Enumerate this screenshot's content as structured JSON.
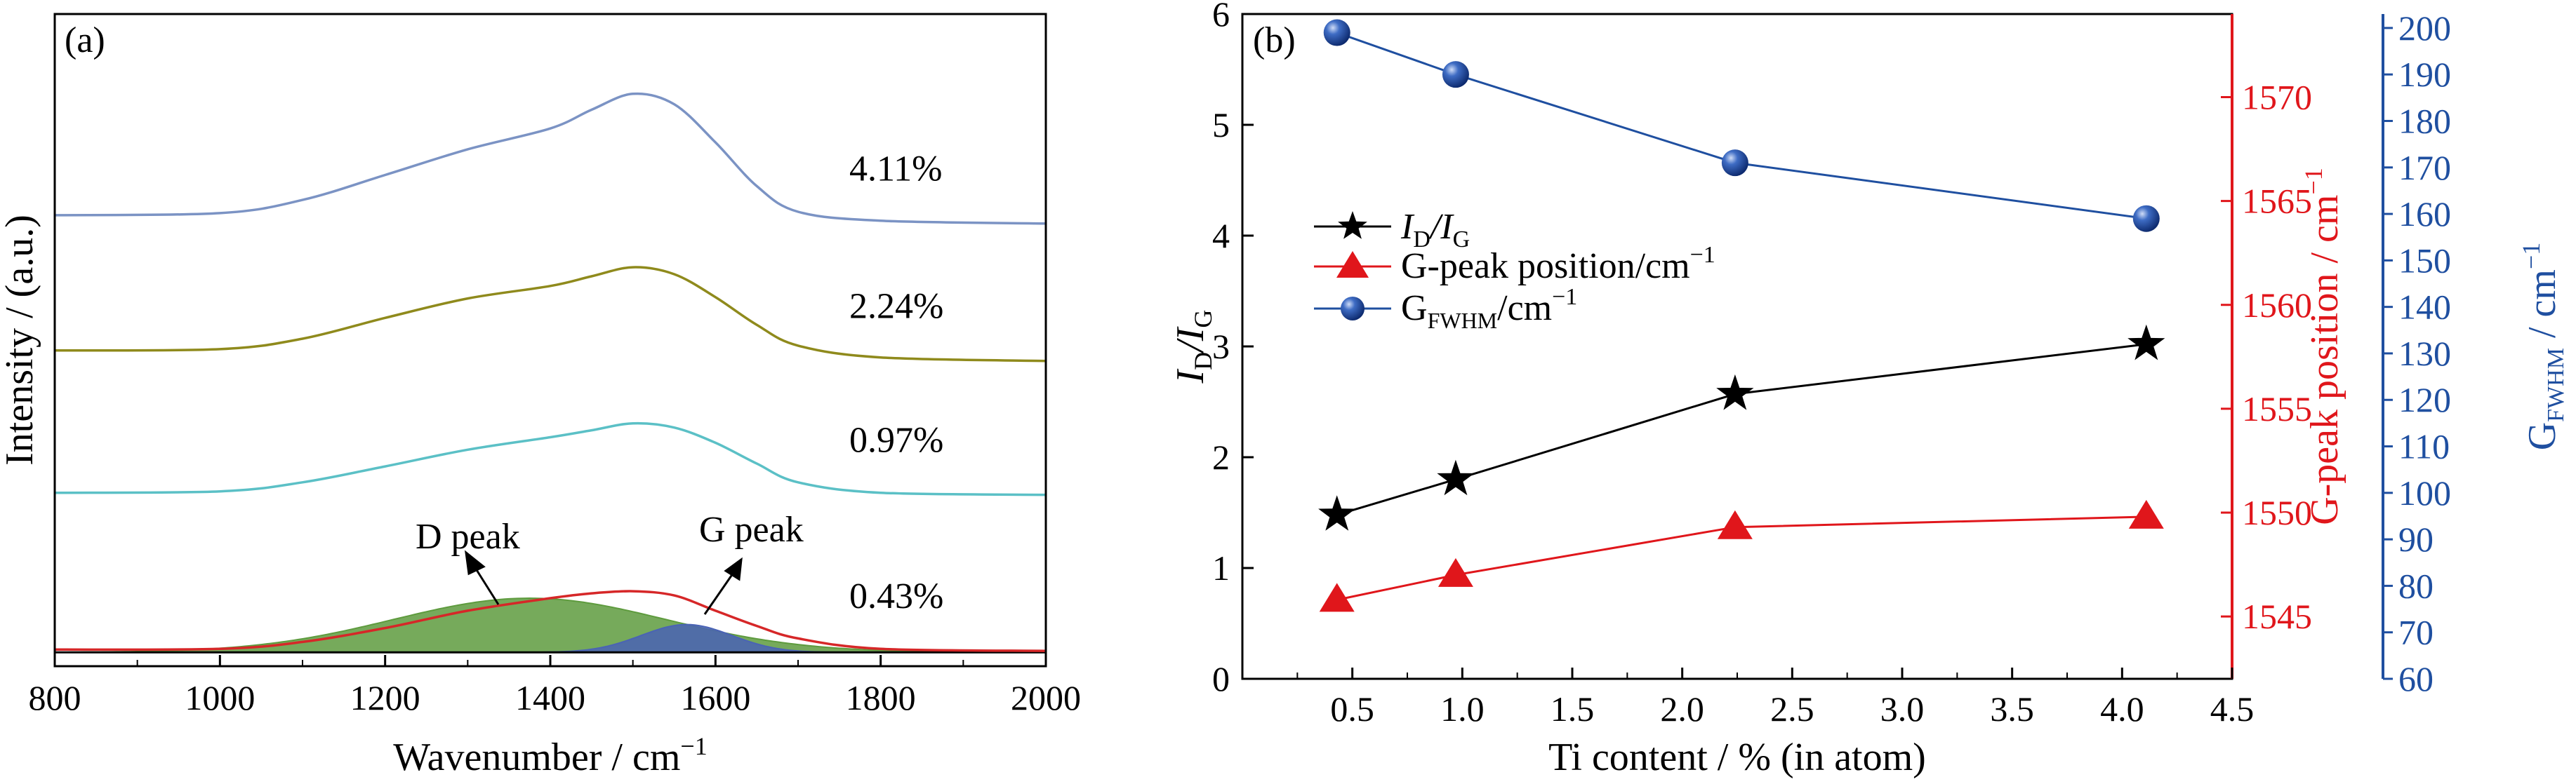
{
  "chart_data": [
    {
      "panel": "(a)",
      "type": "line",
      "xlabel": "Wavenumber / cm",
      "xlabel_sup": "−1",
      "ylabel": "Intensity / (a.u.)",
      "xlim": [
        800,
        2000
      ],
      "xticks": [
        "800",
        "1000",
        "1200",
        "1400",
        "1600",
        "1800",
        "2000"
      ],
      "series": [
        {
          "name": "0.43%",
          "color": "#d62728",
          "x": [
            800,
            1000,
            1100,
            1200,
            1300,
            1400,
            1450,
            1500,
            1550,
            1600,
            1650,
            1700,
            1800,
            2000
          ],
          "y": [
            0.04,
            0.05,
            0.15,
            0.35,
            0.6,
            0.78,
            0.85,
            0.88,
            0.82,
            0.6,
            0.38,
            0.2,
            0.05,
            0.02
          ]
        },
        {
          "name": "0.97%",
          "color": "#5bc0c6",
          "x": [
            800,
            1000,
            1100,
            1200,
            1300,
            1400,
            1450,
            1500,
            1550,
            1600,
            1650,
            1700,
            1800,
            2000
          ],
          "y": [
            2.3,
            2.32,
            2.45,
            2.68,
            2.92,
            3.1,
            3.2,
            3.3,
            3.24,
            3.02,
            2.72,
            2.45,
            2.3,
            2.27
          ]
        },
        {
          "name": "2.24%",
          "color": "#8f8a1c",
          "x": [
            800,
            1000,
            1100,
            1200,
            1300,
            1400,
            1450,
            1500,
            1550,
            1600,
            1650,
            1700,
            1800,
            2000
          ],
          "y": [
            4.35,
            4.37,
            4.52,
            4.82,
            5.1,
            5.28,
            5.42,
            5.55,
            5.45,
            5.12,
            4.72,
            4.42,
            4.25,
            4.2
          ]
        },
        {
          "name": "4.11%",
          "color": "#7b93c4",
          "x": [
            800,
            1000,
            1100,
            1200,
            1300,
            1400,
            1450,
            1500,
            1550,
            1600,
            1650,
            1700,
            1800,
            2000
          ],
          "y": [
            6.3,
            6.33,
            6.52,
            6.88,
            7.25,
            7.55,
            7.82,
            8.05,
            7.9,
            7.35,
            6.72,
            6.35,
            6.22,
            6.18
          ]
        }
      ],
      "fits": [
        {
          "name": "D peak",
          "color": "#5e9b3e",
          "center": 1375,
          "sigma": 165,
          "amplitude": 0.78
        },
        {
          "name": "G peak",
          "color": "#4a63b5",
          "center": 1565,
          "sigma": 55,
          "amplitude": 0.4
        }
      ],
      "annotations": [
        "D peak",
        "G peak"
      ],
      "ylim": [
        -0.2,
        9.2
      ]
    },
    {
      "panel": "(b)",
      "type": "line",
      "xlabel": "Ti content / % (in atom)",
      "xlim": [
        0,
        4.5
      ],
      "xticks": [
        "0.5",
        "1.0",
        "1.5",
        "2.0",
        "2.5",
        "3.0",
        "3.5",
        "4.0",
        "4.5"
      ],
      "x": [
        0.43,
        0.97,
        2.24,
        4.11
      ],
      "ylabel_left": "I_D/I_G",
      "ylim_left": [
        0,
        6
      ],
      "yticks_left": [
        "0",
        "1",
        "2",
        "3",
        "4",
        "5",
        "6"
      ],
      "ylabel_right1": "G-peak position / cm",
      "ylabel_right1_sup": "−1",
      "ylim_right1": [
        1542,
        1574
      ],
      "yticks_right1": [
        "1545",
        "1550",
        "1555",
        "1560",
        "1565",
        "1570"
      ],
      "ylabel_right2": "G",
      "ylabel_right2_sub": "FWHM",
      "ylabel_right2_unit": " / cm",
      "ylabel_right2_sup": "−1",
      "ylim_right2": [
        60,
        203
      ],
      "yticks_right2": [
        "60",
        "70",
        "80",
        "90",
        "100",
        "110",
        "120",
        "130",
        "140",
        "150",
        "160",
        "170",
        "180",
        "190",
        "200"
      ],
      "series": [
        {
          "name": "I_D/I_G",
          "color": "#000000",
          "marker": "star",
          "axis": "left",
          "values": [
            1.48,
            1.8,
            2.57,
            3.02
          ]
        },
        {
          "name": "G-peak position/cm",
          "name_sup": "−1",
          "color": "#e0161b",
          "marker": "triangle",
          "axis": "right1",
          "values": [
            1545.8,
            1547.0,
            1549.3,
            1549.8
          ]
        },
        {
          "name": "G",
          "name_sub": "FWHM",
          "name_unit": "/cm",
          "name_sup": "−1",
          "color": "#1f4fa0",
          "marker": "sphere",
          "axis": "right2",
          "values": [
            199,
            190,
            171,
            159
          ]
        }
      ],
      "legend_position": "center-left"
    }
  ],
  "colors": {
    "axis": "#000000",
    "right_axis_1": "#e0161b",
    "right_axis_2": "#1f4fa0"
  }
}
